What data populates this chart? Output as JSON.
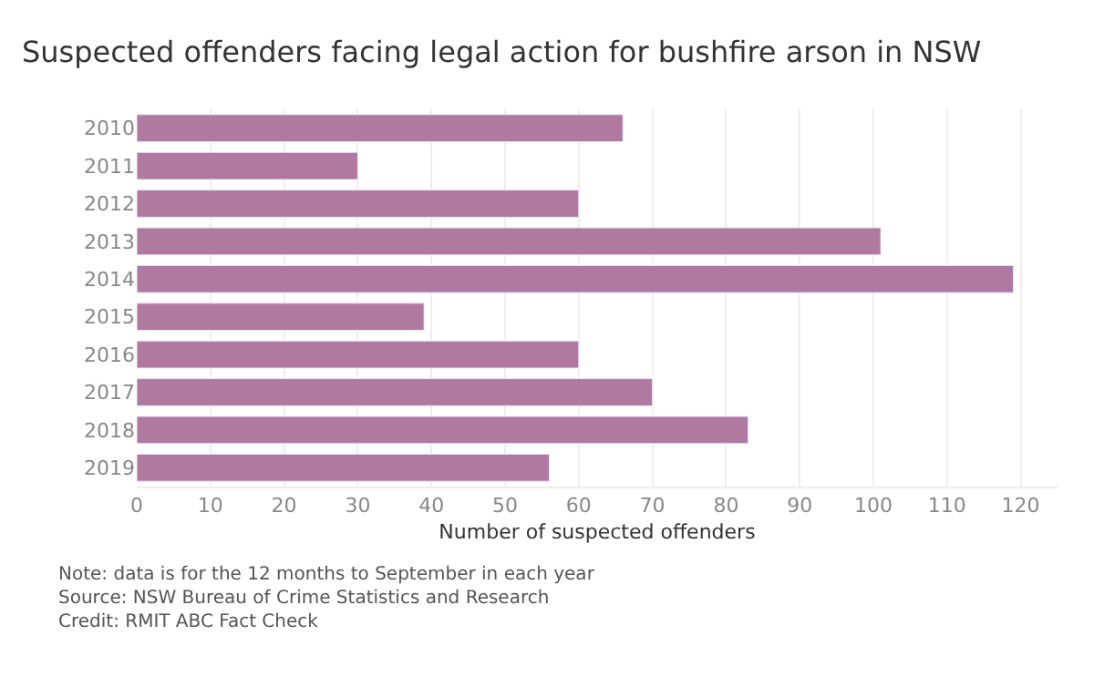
{
  "chart_data": {
    "type": "bar",
    "orientation": "horizontal",
    "title": "Suspected offenders facing legal action for bushfire arson in NSW",
    "xlabel": "Number of suspected offenders",
    "categories": [
      "2010",
      "2011",
      "2012",
      "2013",
      "2014",
      "2015",
      "2016",
      "2017",
      "2018",
      "2019"
    ],
    "values": [
      66,
      30,
      60,
      101,
      119,
      39,
      60,
      70,
      83,
      56
    ],
    "color": "#b0799f",
    "xlim": [
      0,
      125
    ],
    "xticks": [
      0,
      10,
      20,
      30,
      40,
      50,
      60,
      70,
      80,
      90,
      100,
      110,
      120
    ],
    "grid": "x",
    "legend": false,
    "annotations": [
      "Note: data is for the 12 months to September in each year",
      "Source: NSW Bureau of Crime Statistics and Research",
      "Credit: RMIT ABC Fact Check"
    ]
  }
}
